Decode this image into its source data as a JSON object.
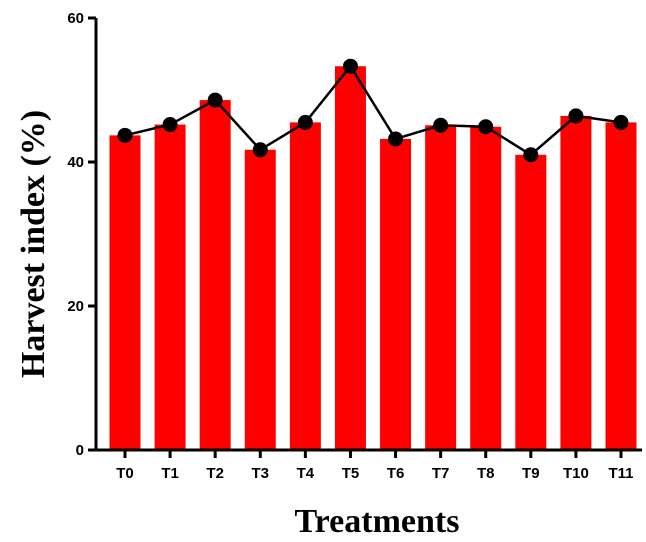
{
  "chart_data": {
    "type": "bar",
    "title": "",
    "xlabel": "Treatments",
    "ylabel": "Harvest index (%)",
    "ylim": [
      0,
      60
    ],
    "yticks": [
      0,
      20,
      40,
      60
    ],
    "grid": false,
    "categories": [
      "T0",
      "T1",
      "T2",
      "T3",
      "T4",
      "T5",
      "T6",
      "T7",
      "T8",
      "T9",
      "T10",
      "T11"
    ],
    "series": [
      {
        "values": [
          43.7,
          45.2,
          48.6,
          41.7,
          45.5,
          53.3,
          43.2,
          45.1,
          44.9,
          41.0,
          46.4,
          45.5
        ]
      }
    ],
    "overlay_line": true,
    "colors": {
      "bar": "#ff0000",
      "line": "#000000",
      "marker": "#000000",
      "axis": "#000000"
    }
  }
}
